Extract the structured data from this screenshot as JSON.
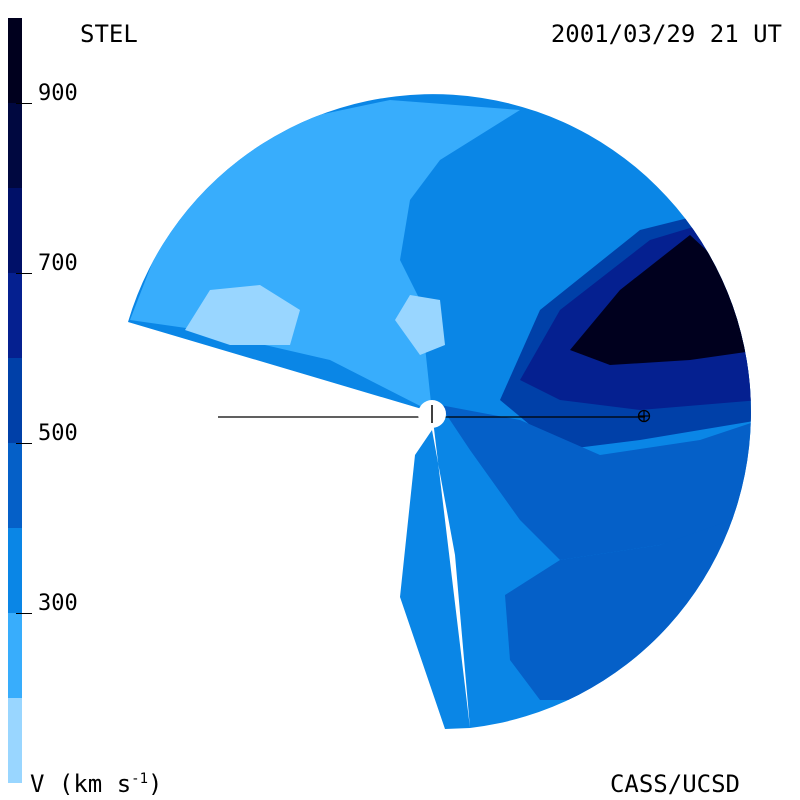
{
  "header": {
    "left": "STEL",
    "right": "2001/03/29 21 UT"
  },
  "footer": {
    "left_main": "V (km s",
    "left_sup": "-1",
    "left_close": ")",
    "right": "CASS/UCSD"
  },
  "chart_data": {
    "type": "heatmap",
    "quantity": "V (km s-1)",
    "colorbar": {
      "range": [
        100,
        1000
      ],
      "tick_values": [
        300,
        500,
        700,
        900
      ],
      "tick_labels": [
        "300",
        "500",
        "700",
        "900"
      ],
      "levels": [
        {
          "min": 100,
          "max": 200,
          "color": "#99d6ff"
        },
        {
          "min": 200,
          "max": 300,
          "color": "#38adfc"
        },
        {
          "min": 300,
          "max": 400,
          "color": "#0a86e6"
        },
        {
          "min": 400,
          "max": 500,
          "color": "#0560c8"
        },
        {
          "min": 500,
          "max": 600,
          "color": "#0040a8"
        },
        {
          "min": 600,
          "max": 700,
          "color": "#052090"
        },
        {
          "min": 700,
          "max": 800,
          "color": "#001068"
        },
        {
          "min": 800,
          "max": 900,
          "color": "#000840"
        },
        {
          "min": 900,
          "max": 1000,
          "color": "#00001e"
        }
      ]
    },
    "background_level": "#0a86e6",
    "regions": [
      {
        "name": "north-west-slow-wind",
        "level": 200
      },
      {
        "name": "north-west-slowest-patch",
        "level": 100
      },
      {
        "name": "central-slowest-patch",
        "level": 100
      },
      {
        "name": "west-slowest-patch",
        "level": 100
      },
      {
        "name": "east-fast-stream",
        "level": 500
      },
      {
        "name": "east-faster-stream",
        "level": 600
      },
      {
        "name": "east-fastest-core",
        "level": 900
      },
      {
        "name": "south-east-moderate-region",
        "level": 400
      },
      {
        "name": "east-moderate-band",
        "level": 400
      }
    ],
    "markers": [
      "sun",
      "earth"
    ]
  }
}
